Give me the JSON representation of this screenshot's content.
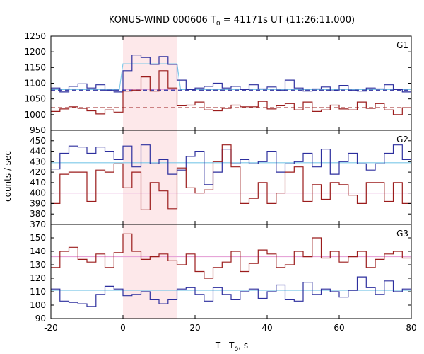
{
  "chart_data": {
    "type": "line",
    "title": "KONUS-WIND 000606 T",
    "title_sub": "0",
    "title_rest": " = 41171s UT (11:26:11.000)",
    "xlabel": "T - T",
    "xlabel_sub": "0",
    "xlabel_rest": ", s",
    "ylabel": "counts / sec",
    "xlim": [
      -20,
      80
    ],
    "x_ticks": [
      -20,
      0,
      20,
      40,
      60,
      80
    ],
    "highlight_interval": [
      0,
      15
    ],
    "highlight_color": "#fde8ea",
    "colors": {
      "blue": "#2d2f9e",
      "red": "#9b1c1c",
      "cyan": "#7cc8e8",
      "pink": "#e6a4d8"
    },
    "panels": [
      {
        "label": "G1",
        "ylim": [
          950,
          1250
        ],
        "y_ticks": [
          950,
          1000,
          1050,
          1100,
          1150,
          1200,
          1250
        ],
        "bin_edges": [
          -20,
          -17.5,
          -15,
          -12.5,
          -10,
          -7.5,
          -5,
          -2.5,
          0,
          2.5,
          5,
          7.5,
          10,
          12.5,
          15,
          17.5,
          20,
          22.5,
          25,
          27.5,
          30,
          32.5,
          35,
          37.5,
          40,
          42.5,
          45,
          47.5,
          50,
          52.5,
          55,
          57.5,
          60,
          62.5,
          65,
          67.5,
          70,
          72.5,
          75,
          77.5,
          80
        ],
        "series": [
          {
            "color": "blue",
            "values": [
              1085,
              1072,
              1090,
              1098,
              1085,
              1095,
              1078,
              1072,
              1140,
              1190,
              1182,
              1160,
              1185,
              1160,
              1110,
              1080,
              1085,
              1090,
              1100,
              1085,
              1090,
              1080,
              1095,
              1082,
              1088,
              1078,
              1110,
              1085,
              1075,
              1082,
              1088,
              1076,
              1093,
              1078,
              1075,
              1085,
              1082,
              1095,
              1080,
              1072
            ]
          },
          {
            "color": "red",
            "values": [
              1010,
              1018,
              1025,
              1020,
              1012,
              1002,
              1015,
              1008,
              1075,
              1078,
              1120,
              1075,
              1140,
              1085,
              1028,
              1030,
              1040,
              1015,
              1012,
              1020,
              1030,
              1025,
              1025,
              1042,
              1018,
              1028,
              1035,
              1015,
              1040,
              1010,
              1015,
              1030,
              1018,
              1015,
              1040,
              1020,
              1035,
              1015,
              1000,
              1022
            ]
          }
        ],
        "step_lines": [
          {
            "color": "cyan",
            "points": [
              [
                -20,
                1080
              ],
              [
                -1,
                1080
              ],
              [
                0,
                1162
              ],
              [
                15,
                1162
              ],
              [
                16,
                1080
              ],
              [
                80,
                1080
              ]
            ]
          },
          {
            "color": "pink",
            "points": [
              [
                0,
                1080
              ],
              [
                15,
                1080
              ]
            ]
          }
        ],
        "dashed_lines": [
          {
            "color": "blue",
            "value": 1078
          },
          {
            "color": "red",
            "value": 1022
          }
        ]
      },
      {
        "label": "G2",
        "ylim": [
          370,
          460
        ],
        "y_ticks": [
          370,
          380,
          390,
          400,
          410,
          420,
          430,
          440,
          450
        ],
        "bin_edges": [
          -20,
          -17.5,
          -15,
          -12.5,
          -10,
          -7.5,
          -5,
          -2.5,
          0,
          2.5,
          5,
          7.5,
          10,
          12.5,
          15,
          17.5,
          20,
          22.5,
          25,
          27.5,
          30,
          32.5,
          35,
          37.5,
          40,
          42.5,
          45,
          47.5,
          50,
          52.5,
          55,
          57.5,
          60,
          62.5,
          65,
          67.5,
          70,
          72.5,
          75,
          77.5,
          80
        ],
        "series": [
          {
            "color": "blue",
            "values": [
              423,
              438,
              445,
              444,
              438,
              444,
              440,
              432,
              445,
              425,
              446,
              428,
              432,
              418,
              422,
              435,
              440,
              408,
              420,
              442,
              428,
              432,
              428,
              430,
              440,
              420,
              428,
              430,
              438,
              425,
              442,
              418,
              430,
              438,
              428,
              422,
              428,
              438,
              446,
              432
            ]
          },
          {
            "color": "red",
            "values": [
              390,
              418,
              420,
              420,
              392,
              422,
              420,
              428,
              405,
              420,
              384,
              410,
              402,
              385,
              424,
              405,
              400,
              403,
              430,
              446,
              425,
              390,
              395,
              410,
              390,
              400,
              420,
              425,
              392,
              408,
              394,
              410,
              408,
              398,
              390,
              410,
              410,
              392,
              410,
              390
            ]
          }
        ],
        "step_lines": [
          {
            "color": "cyan",
            "points": [
              [
                -20,
                429
              ],
              [
                80,
                429
              ]
            ]
          },
          {
            "color": "pink",
            "points": [
              [
                -20,
                400
              ],
              [
                80,
                400
              ]
            ]
          }
        ],
        "dashed_lines": []
      },
      {
        "label": "G3",
        "ylim": [
          90,
          160
        ],
        "y_ticks": [
          90,
          100,
          110,
          120,
          130,
          140,
          150
        ],
        "bin_edges": [
          -20,
          -17.5,
          -15,
          -12.5,
          -10,
          -7.5,
          -5,
          -2.5,
          0,
          2.5,
          5,
          7.5,
          10,
          12.5,
          15,
          17.5,
          20,
          22.5,
          25,
          27.5,
          30,
          32.5,
          35,
          37.5,
          40,
          42.5,
          45,
          47.5,
          50,
          52.5,
          55,
          57.5,
          60,
          62.5,
          65,
          67.5,
          70,
          72.5,
          75,
          77.5,
          80
        ],
        "series": [
          {
            "color": "blue",
            "values": [
              112,
              103,
              102,
              101,
              99,
              108,
              114,
              112,
              107,
              108,
              110,
              104,
              101,
              104,
              112,
              113,
              108,
              103,
              113,
              108,
              104,
              110,
              112,
              105,
              110,
              115,
              104,
              103,
              117,
              108,
              112,
              110,
              106,
              111,
              121,
              113,
              108,
              118,
              110,
              112
            ]
          },
          {
            "color": "red",
            "values": [
              128,
              140,
              143,
              134,
              132,
              138,
              128,
              139,
              153,
              140,
              134,
              136,
              138,
              133,
              130,
              138,
              125,
              120,
              128,
              132,
              140,
              125,
              131,
              141,
              138,
              128,
              130,
              140,
              136,
              150,
              135,
              140,
              132,
              136,
              140,
              128,
              134,
              138,
              140,
              135
            ]
          }
        ],
        "step_lines": [
          {
            "color": "cyan",
            "points": [
              [
                -20,
                111
              ],
              [
                80,
                111
              ]
            ]
          },
          {
            "color": "pink",
            "points": [
              [
                -20,
                136
              ],
              [
                80,
                136
              ]
            ]
          }
        ],
        "dashed_lines": []
      }
    ]
  }
}
